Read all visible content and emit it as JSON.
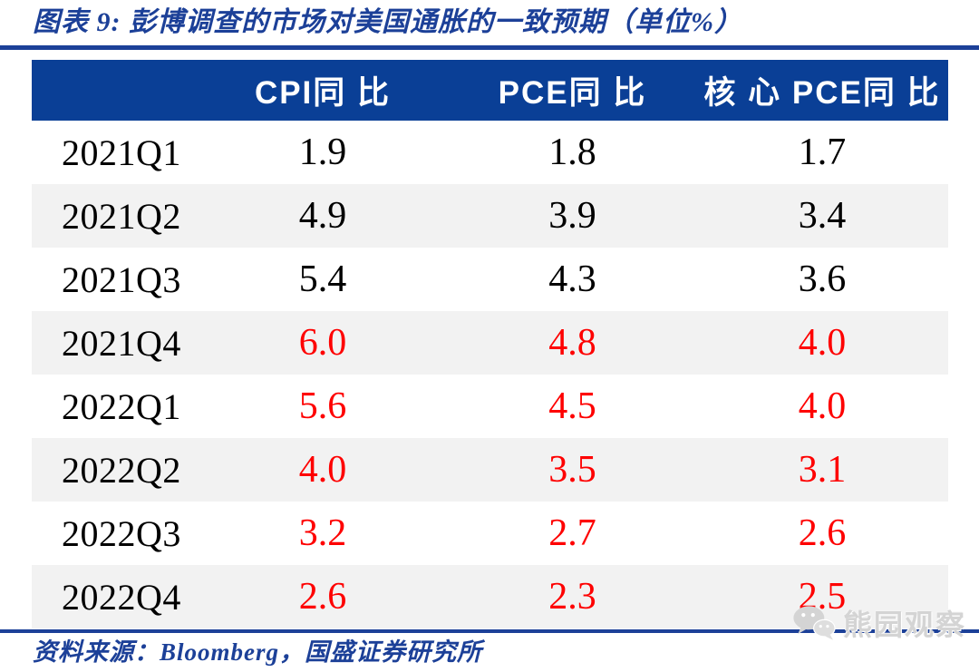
{
  "title": "图表 9:  彭博调查的市场对美国通胀的一致预期（单位%）",
  "table": {
    "columns": [
      "",
      "CPI同 比",
      "PCE同 比",
      "核 心 PCE同 比"
    ],
    "rows": [
      {
        "label": "2021Q1",
        "values": [
          "1.9",
          "1.8",
          "1.7"
        ],
        "red": false
      },
      {
        "label": "2021Q2",
        "values": [
          "4.9",
          "3.9",
          "3.4"
        ],
        "red": false
      },
      {
        "label": "2021Q3",
        "values": [
          "5.4",
          "4.3",
          "3.6"
        ],
        "red": false
      },
      {
        "label": "2021Q4",
        "values": [
          "6.0",
          "4.8",
          "4.0"
        ],
        "red": true
      },
      {
        "label": "2022Q1",
        "values": [
          "5.6",
          "4.5",
          "4.0"
        ],
        "red": true
      },
      {
        "label": "2022Q2",
        "values": [
          "4.0",
          "3.5",
          "3.1"
        ],
        "red": true
      },
      {
        "label": "2022Q3",
        "values": [
          "3.2",
          "2.7",
          "2.6"
        ],
        "red": true
      },
      {
        "label": "2022Q4",
        "values": [
          "2.6",
          "2.3",
          "2.5"
        ],
        "red": true
      }
    ]
  },
  "footer": {
    "source": "资料来源：Bloomberg，国盛证券研究所"
  },
  "watermark": {
    "icon": "wechat-icon",
    "text": "熊园观察"
  },
  "colors": {
    "accent_blue": "#1c4098",
    "header_bg": "#0a3f96",
    "row_alt": "#f2f2f2",
    "highlight_red": "#fe0000",
    "watermark_gray": "#d4d4d4"
  },
  "chart_data": {
    "type": "table",
    "title": "图表9: 彭博调查的市场对美国通胀的一致预期（单位%）",
    "categories": [
      "2021Q1",
      "2021Q2",
      "2021Q3",
      "2021Q4",
      "2022Q1",
      "2022Q2",
      "2022Q3",
      "2022Q4"
    ],
    "series": [
      {
        "name": "CPI同比",
        "values": [
          1.9,
          4.9,
          5.4,
          6.0,
          5.6,
          4.0,
          3.2,
          2.6
        ]
      },
      {
        "name": "PCE同比",
        "values": [
          1.8,
          3.9,
          4.3,
          4.8,
          4.5,
          3.5,
          2.7,
          2.3
        ]
      },
      {
        "name": "核心PCE同比",
        "values": [
          1.7,
          3.4,
          3.6,
          4.0,
          4.0,
          3.1,
          2.6,
          2.5
        ]
      }
    ],
    "red_highlighted_categories": [
      "2021Q4",
      "2022Q1",
      "2022Q2",
      "2022Q3",
      "2022Q4"
    ],
    "source": "资料来源：Bloomberg，国盛证券研究所"
  }
}
